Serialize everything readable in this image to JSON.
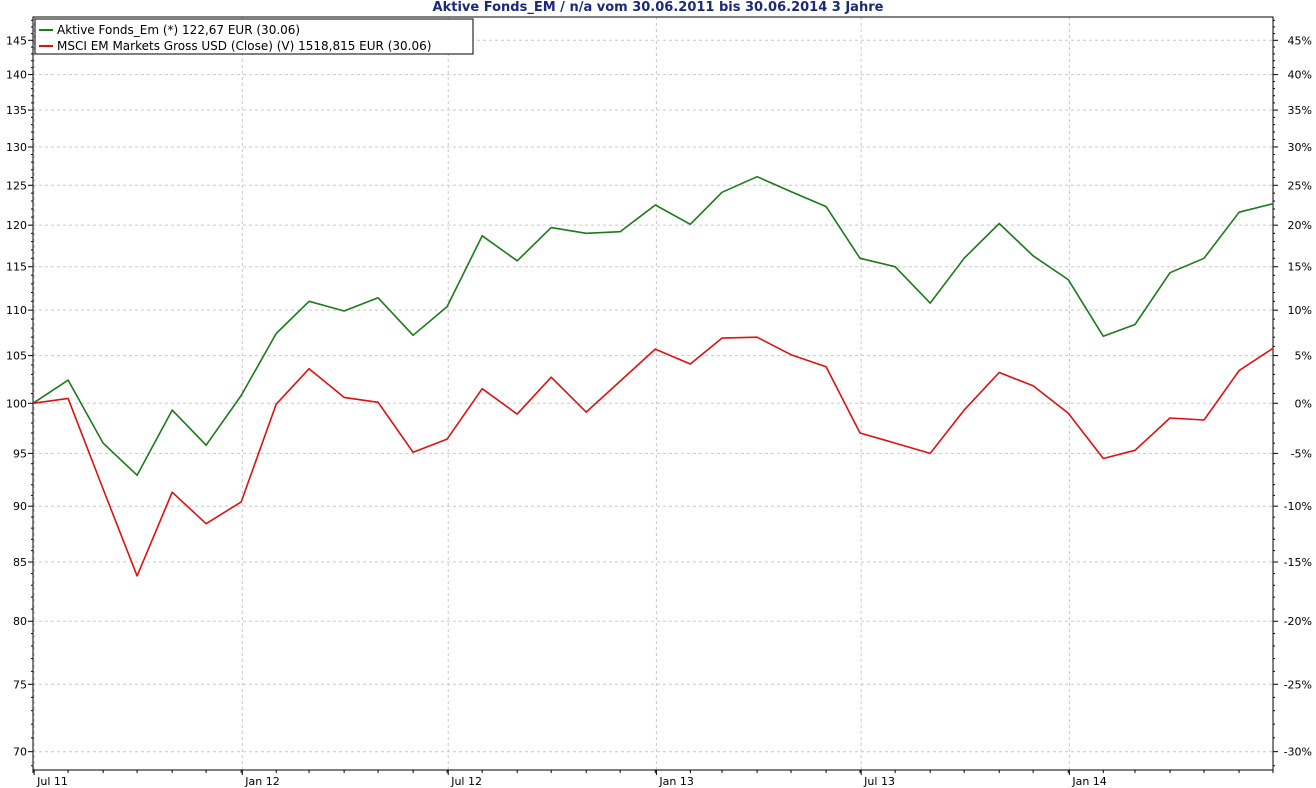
{
  "chart_data": {
    "type": "line",
    "title": "Aktive Fonds_EM / n/a vom 30.06.2011 bis 30.06.2014 3 Jahre",
    "xlabel": "",
    "ylabel": "",
    "y_scale": "log",
    "ylim": [
      68.7,
      148.5
    ],
    "grid": true,
    "legend_position": "top-left",
    "x_dates": [
      "2011-06-30",
      "2011-07-31",
      "2011-08-31",
      "2011-09-30",
      "2011-10-31",
      "2011-11-30",
      "2011-12-31",
      "2012-01-31",
      "2012-02-29",
      "2012-03-31",
      "2012-04-30",
      "2012-05-31",
      "2012-06-30",
      "2012-07-31",
      "2012-08-31",
      "2012-09-30",
      "2012-10-31",
      "2012-11-30",
      "2012-12-31",
      "2013-01-31",
      "2013-02-28",
      "2013-03-31",
      "2013-04-30",
      "2013-05-31",
      "2013-06-30",
      "2013-07-31",
      "2013-08-31",
      "2013-09-30",
      "2013-10-31",
      "2013-11-30",
      "2013-12-31",
      "2014-01-31",
      "2014-02-28",
      "2014-03-31",
      "2014-04-30",
      "2014-05-31",
      "2014-06-30"
    ],
    "x_tick_labels": [
      {
        "date": "2011-07-01",
        "label": "Jul 11"
      },
      {
        "date": "2012-01-01",
        "label": "Jan 12"
      },
      {
        "date": "2012-07-01",
        "label": "Jul 12"
      },
      {
        "date": "2013-01-01",
        "label": "Jan 13"
      },
      {
        "date": "2013-07-01",
        "label": "Jul 13"
      },
      {
        "date": "2014-01-01",
        "label": "Jan 14"
      }
    ],
    "y_left_ticks": [
      70,
      75,
      80,
      85,
      90,
      95,
      100,
      105,
      110,
      115,
      120,
      125,
      130,
      135,
      140,
      145
    ],
    "y_right_ticks": [
      {
        "value": 70,
        "label": "-30%"
      },
      {
        "value": 75,
        "label": "-25%"
      },
      {
        "value": 80,
        "label": "-20%"
      },
      {
        "value": 85,
        "label": "-15%"
      },
      {
        "value": 90,
        "label": "-10%"
      },
      {
        "value": 95,
        "label": "-5%"
      },
      {
        "value": 100,
        "label": "0%"
      },
      {
        "value": 105,
        "label": "5%"
      },
      {
        "value": 110,
        "label": "10%"
      },
      {
        "value": 115,
        "label": "15%"
      },
      {
        "value": 120,
        "label": "20%"
      },
      {
        "value": 125,
        "label": "25%"
      },
      {
        "value": 130,
        "label": "30%"
      },
      {
        "value": 135,
        "label": "35%"
      },
      {
        "value": 140,
        "label": "40%"
      },
      {
        "value": 145,
        "label": "45%"
      }
    ],
    "series": [
      {
        "name": "Aktive Fonds_Em (*) 122,67 EUR (30.06)",
        "color": "#1b7a1b",
        "values": [
          100,
          102.4,
          96.0,
          92.9,
          99.3,
          95.8,
          100.8,
          107.4,
          111.0,
          109.9,
          111.4,
          107.2,
          110.4,
          118.7,
          115.7,
          119.7,
          119.0,
          119.2,
          122.5,
          120.1,
          124.1,
          126.1,
          124.2,
          122.3,
          116.0,
          115.0,
          110.8,
          116.0,
          120.2,
          116.3,
          113.5,
          107.1,
          108.4,
          114.3,
          116.0,
          121.6,
          122.67
        ]
      },
      {
        "name": "MSCI EM Markets Gross USD (Close) (V) 1518,815 EUR (30.06)",
        "color": "#dd1111",
        "values": [
          100,
          100.5,
          91.6,
          83.8,
          91.3,
          88.4,
          90.4,
          99.9,
          103.6,
          100.6,
          100.1,
          95.1,
          96.4,
          101.5,
          98.9,
          102.7,
          99.1,
          102.3,
          105.7,
          104.1,
          106.9,
          107.0,
          105.1,
          103.8,
          97.0,
          96.0,
          95.0,
          99.3,
          103.2,
          101.8,
          99.0,
          94.5,
          95.3,
          98.5,
          98.3,
          103.4,
          105.8
        ]
      }
    ]
  }
}
